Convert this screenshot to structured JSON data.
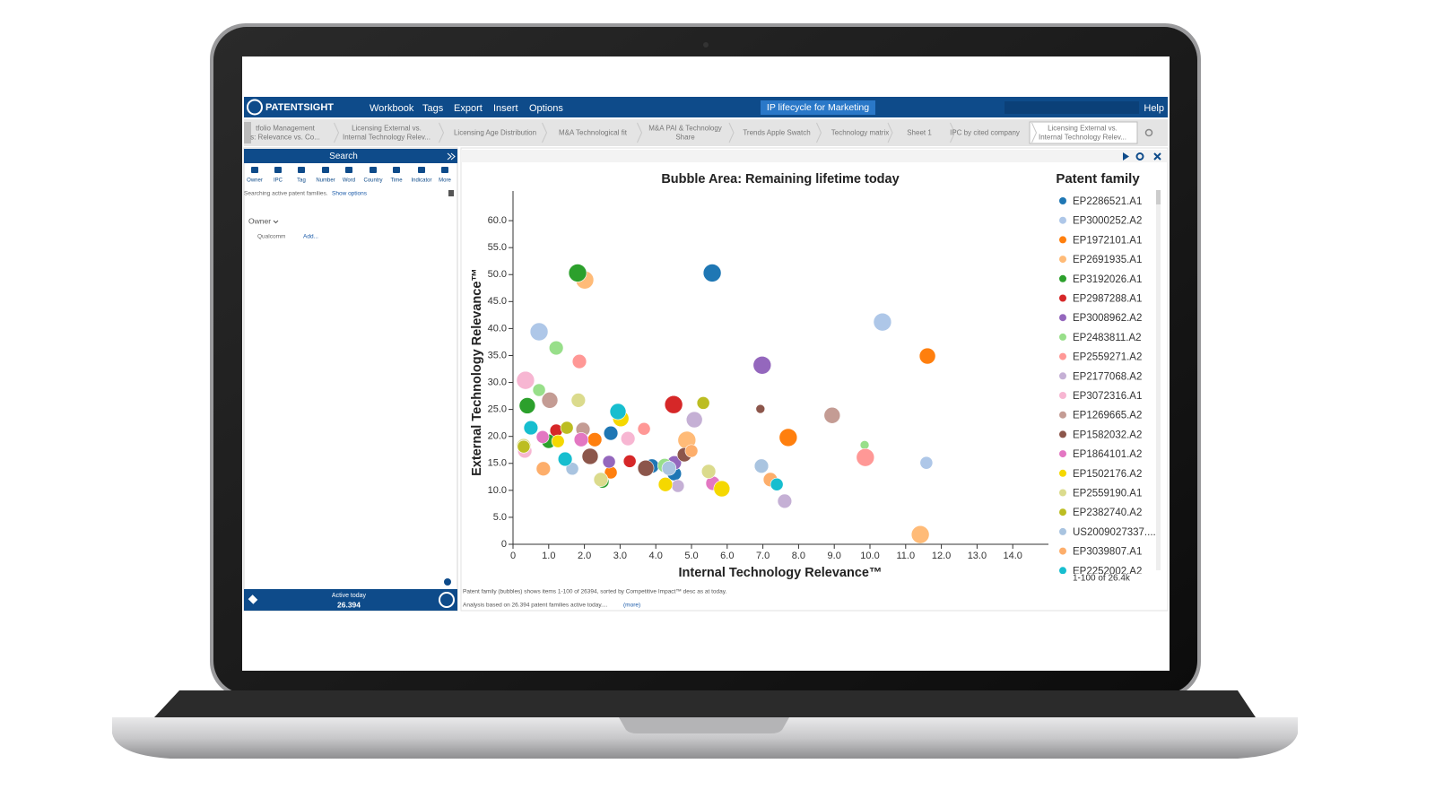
{
  "app": {
    "brand": "PATENTSIGHT",
    "menu": [
      "Workbook",
      "Tags",
      "Export",
      "Insert",
      "Options"
    ],
    "workbook": "IP lifecycle for Marketing",
    "help": "Help",
    "tabs": [
      [
        "tfolio Management",
        "s: Relevance vs. Co..."
      ],
      [
        "Licensing External vs.",
        "Internal Technology Relev..."
      ],
      [
        "Licensing Age Distribution"
      ],
      [
        "M&A Technological fit"
      ],
      [
        "M&A PAI & Technology",
        "Share"
      ],
      [
        "Trends Apple Swatch"
      ],
      [
        "Technology matrix"
      ],
      [
        "Sheet 1"
      ],
      [
        "IPC by cited company"
      ],
      [
        "Licensing External vs.",
        "Internal Technology Relev..."
      ]
    ],
    "search": {
      "title": "Search",
      "tools": [
        "Owner",
        "IPC",
        "Tag",
        "Number",
        "Word",
        "Country",
        "Time",
        "Indicator",
        "More"
      ],
      "status": "Searching active patent families.",
      "show_options": "Show options",
      "filter": "Owner",
      "owner": "Qualcomm",
      "add": "Add...",
      "active_label": "Active today",
      "active_count": "26.394"
    },
    "footer": [
      "Patent family (bubbles) shows items 1-100 of 26394, sorted by Competitive Impact™ desc as at today.",
      "Analysis based on 26.394 patent families active today....",
      "(more)"
    ],
    "legend_pager": "1-100 of 26.4k"
  },
  "chart_data": {
    "type": "bubble",
    "title": "Bubble Area:  Remaining lifetime today",
    "xlabel": "Internal Technology Relevance™",
    "ylabel": "External Technology Relevance™",
    "legend_title": "Patent family",
    "legend": "right",
    "xlim": [
      0,
      15
    ],
    "ylim": [
      0,
      65.5
    ],
    "xticks": [
      0,
      {
        "value": 1,
        "label": "1.0"
      },
      {
        "value": 2,
        "label": "2.0"
      },
      {
        "value": 3,
        "label": "3.0"
      },
      {
        "value": 4,
        "label": "4.0"
      },
      {
        "value": 5,
        "label": "5.0"
      },
      {
        "value": 6,
        "label": "6.0"
      },
      {
        "value": 7,
        "label": "7.0"
      },
      {
        "value": 8,
        "label": "8.0"
      },
      {
        "value": 9,
        "label": "9.0"
      },
      {
        "value": 10,
        "label": "10.0"
      },
      {
        "value": 11,
        "label": "11.0"
      },
      {
        "value": 12,
        "label": "12.0"
      },
      {
        "value": 13,
        "label": "13.0"
      },
      {
        "value": 14,
        "label": "14.0"
      }
    ],
    "yticks": [
      0,
      {
        "value": 5,
        "label": "5.0"
      },
      {
        "value": 10,
        "label": "10.0"
      },
      {
        "value": 15,
        "label": "15.0"
      },
      {
        "value": 20,
        "label": "20.0"
      },
      {
        "value": 25,
        "label": "25.0"
      },
      {
        "value": 30,
        "label": "30.0"
      },
      {
        "value": 35,
        "label": "35.0"
      },
      {
        "value": 40,
        "label": "40.0"
      },
      {
        "value": 45,
        "label": "45.0"
      },
      {
        "value": 50,
        "label": "50.0"
      },
      {
        "value": 55,
        "label": "55.0"
      },
      {
        "value": 60,
        "label": "60.0"
      }
    ],
    "series": [
      {
        "name": "EP2286521.A1",
        "color": "#1f77b4",
        "x": [
          5.58,
          2.74,
          4.52,
          3.89
        ],
        "y": [
          50.3,
          20.6,
          13.1,
          14.5
        ],
        "size": [
          16,
          10,
          10,
          10
        ]
      },
      {
        "name": "EP3000252.A2",
        "color": "#aec7e8",
        "x": [
          0.73,
          10.35,
          11.58
        ],
        "y": [
          39.4,
          41.2,
          15.1
        ],
        "size": [
          16,
          16,
          8
        ]
      },
      {
        "name": "EP1972101.A1",
        "color": "#ff7f0e",
        "x": [
          11.61,
          7.71,
          2.29,
          2.74
        ],
        "y": [
          34.9,
          19.8,
          19.4,
          13.3
        ],
        "size": [
          13,
          16,
          10,
          8
        ]
      },
      {
        "name": "EP2691935.A1",
        "color": "#ffbb78",
        "x": [
          2.01,
          11.41,
          4.87
        ],
        "y": [
          49.0,
          1.8,
          19.3
        ],
        "size": [
          16,
          16,
          16
        ]
      },
      {
        "name": "EP3192026.A1",
        "color": "#2ca02c",
        "x": [
          1.81,
          0.4,
          2.51,
          1.0
        ],
        "y": [
          50.3,
          25.7,
          11.6,
          19.1
        ],
        "size": [
          16,
          13,
          8,
          10
        ]
      },
      {
        "name": "EP2987288.A1",
        "color": "#d62728",
        "x": [
          4.5,
          3.27,
          1.21
        ],
        "y": [
          25.9,
          15.4,
          21.1
        ],
        "size": [
          16,
          8,
          8
        ]
      },
      {
        "name": "EP3008962.A2",
        "color": "#9467bd",
        "x": [
          6.98,
          4.52,
          2.69
        ],
        "y": [
          33.2,
          15.1,
          15.3
        ],
        "size": [
          16,
          10,
          8
        ]
      },
      {
        "name": "EP2483811.A2",
        "color": "#98df8a",
        "x": [
          1.21,
          0.73,
          9.85,
          4.25
        ],
        "y": [
          36.4,
          28.6,
          18.4,
          14.6
        ],
        "size": [
          10,
          8,
          4,
          10
        ]
      },
      {
        "name": "EP2559271.A2",
        "color": "#ff9896",
        "x": [
          1.86,
          9.87,
          3.67
        ],
        "y": [
          33.9,
          16.1,
          21.4
        ],
        "size": [
          10,
          16,
          8
        ]
      },
      {
        "name": "EP2177068.A2",
        "color": "#c5b0d5",
        "x": [
          5.08,
          7.61,
          4.62
        ],
        "y": [
          23.1,
          8.0,
          10.8
        ],
        "size": [
          13,
          10,
          8
        ]
      },
      {
        "name": "EP3072316.A1",
        "color": "#f7b6d2",
        "x": [
          0.35,
          0.33,
          3.22
        ],
        "y": [
          30.4,
          17.3,
          19.6
        ],
        "size": [
          16,
          10,
          10
        ]
      },
      {
        "name": "EP1269665.A2",
        "color": "#c49c94",
        "x": [
          8.94,
          1.03,
          1.96
        ],
        "y": [
          23.9,
          26.7,
          21.3
        ],
        "size": [
          13,
          13,
          10
        ]
      },
      {
        "name": "EP1582032.A2",
        "color": "#8c564b",
        "x": [
          6.93,
          3.72,
          2.16,
          4.8
        ],
        "y": [
          25.1,
          14.1,
          16.3,
          16.6
        ],
        "size": [
          4,
          13,
          13,
          10
        ]
      },
      {
        "name": "EP1864101.A2",
        "color": "#e377c2",
        "x": [
          1.91,
          5.6,
          0.83
        ],
        "y": [
          19.4,
          11.3,
          19.9
        ],
        "size": [
          10,
          10,
          8
        ]
      },
      {
        "name": "EP1502176.A2",
        "color": "#f5d800",
        "x": [
          3.02,
          5.85,
          1.26,
          4.27
        ],
        "y": [
          23.3,
          10.3,
          19.1,
          11.1
        ],
        "size": [
          13,
          13,
          8,
          10
        ]
      },
      {
        "name": "EP2559190.A1",
        "color": "#dbdb8d",
        "x": [
          1.83,
          5.48,
          0.3,
          2.46
        ],
        "y": [
          26.7,
          13.5,
          18.3,
          12.0
        ],
        "size": [
          10,
          10,
          10,
          10
        ]
      },
      {
        "name": "EP2382740.A2",
        "color": "#bcbd22",
        "x": [
          5.33,
          0.3,
          1.51
        ],
        "y": [
          26.2,
          18.1,
          21.6
        ],
        "size": [
          8,
          8,
          8
        ]
      },
      {
        "name": "US2009027337....",
        "color": "#a9c4e0",
        "x": [
          6.96,
          4.37,
          1.66
        ],
        "y": [
          14.5,
          14.1,
          14.0
        ],
        "size": [
          10,
          10,
          8
        ]
      },
      {
        "name": "EP3039807.A1",
        "color": "#fdae6b",
        "x": [
          7.21,
          0.85,
          5.0
        ],
        "y": [
          12.0,
          14.0,
          17.3
        ],
        "size": [
          10,
          10,
          8
        ]
      },
      {
        "name": "EP2252002.A2",
        "color": "#17becf",
        "x": [
          2.94,
          7.39,
          0.5,
          1.46
        ],
        "y": [
          24.6,
          11.1,
          21.6,
          15.8
        ],
        "size": [
          13,
          8,
          10,
          10
        ]
      }
    ]
  }
}
